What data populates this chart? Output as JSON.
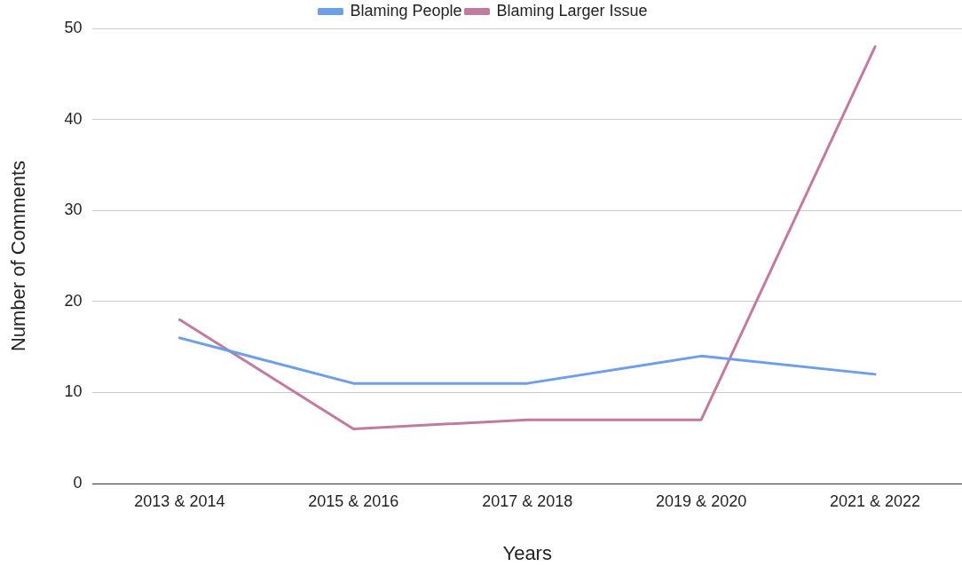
{
  "chart_data": {
    "type": "line",
    "xlabel": "Years",
    "ylabel": "Number of Comments",
    "categories": [
      "2013 & 2014",
      "2015 & 2016",
      "2017 & 2018",
      "2019 & 2020",
      "2021 & 2022"
    ],
    "series": [
      {
        "name": "Blaming People",
        "color": "#6d9eeb",
        "values": [
          16,
          11,
          11,
          14,
          12
        ]
      },
      {
        "name": "Blaming Larger Issue",
        "color": "#c27ba0",
        "values": [
          18,
          6,
          7,
          7,
          48
        ]
      }
    ],
    "ylim": [
      0,
      50
    ],
    "yticks": [
      0,
      10,
      20,
      30,
      40,
      50
    ],
    "grid": "y",
    "legend": "top",
    "marker": "none",
    "line_style": "solid"
  }
}
